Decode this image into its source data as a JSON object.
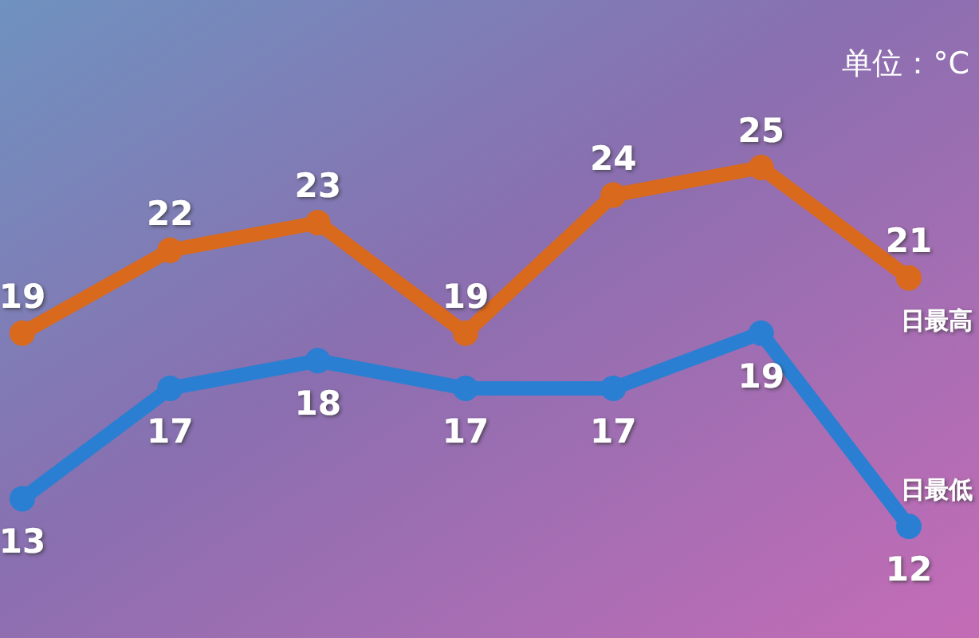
{
  "chart_data": {
    "type": "line",
    "categories": [
      null,
      null,
      null,
      null,
      null,
      null,
      null
    ],
    "series": [
      {
        "name": "日最高",
        "color": "#d9691c",
        "values": [
          19,
          22,
          23,
          19,
          24,
          25,
          21
        ]
      },
      {
        "name": "日最低",
        "color": "#2a7fd2",
        "values": [
          13,
          17,
          18,
          17,
          17,
          19,
          12
        ]
      }
    ],
    "data_labels": true,
    "marker": "circle",
    "legend": false,
    "annotations": [
      "单位：°C"
    ]
  }
}
